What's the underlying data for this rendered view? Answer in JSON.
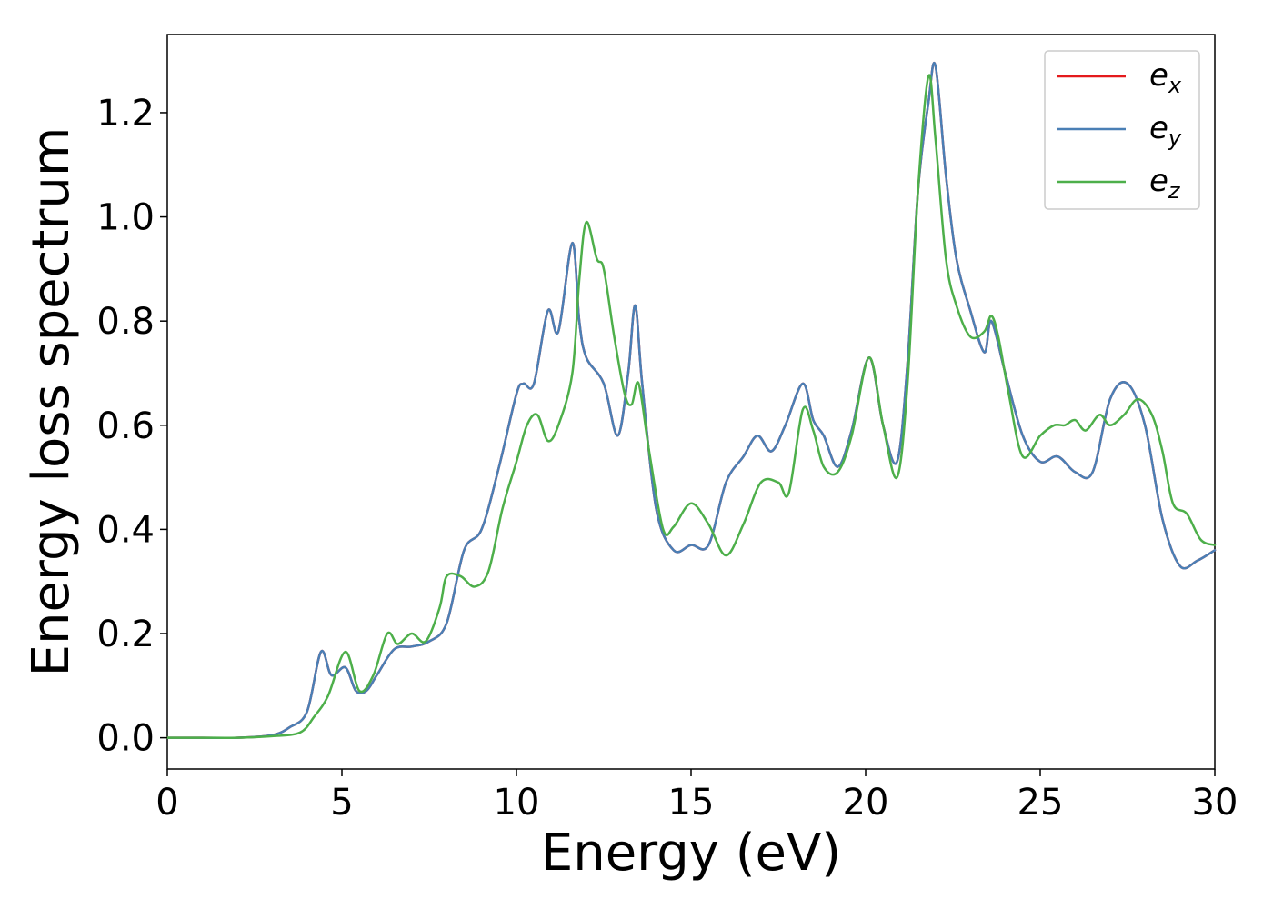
{
  "chart_data": {
    "type": "line",
    "title": "",
    "xlabel": "Energy (eV)",
    "ylabel": "Energy loss spectrum",
    "xlim": [
      0,
      30
    ],
    "ylim": [
      -0.06,
      1.35
    ],
    "xticks": [
      0,
      5,
      10,
      15,
      20,
      25,
      30
    ],
    "xtick_labels": [
      "0",
      "5",
      "10",
      "15",
      "20",
      "25",
      "30"
    ],
    "yticks": [
      0.0,
      0.2,
      0.4,
      0.6,
      0.8,
      1.0,
      1.2
    ],
    "ytick_labels": [
      "0.0",
      "0.2",
      "0.4",
      "0.6",
      "0.8",
      "1.0",
      "1.2"
    ],
    "grid": false,
    "legend_position": "top-right",
    "series": [
      {
        "name": "e_x",
        "legend_main": "e",
        "legend_sub": "x",
        "color": "#e41a1c",
        "x": [
          0,
          1,
          2,
          3,
          3.5,
          4,
          4.4,
          4.7,
          5.1,
          5.4,
          5.7,
          6.0,
          6.5,
          7.0,
          7.5,
          8.0,
          8.5,
          9.0,
          9.5,
          10.0,
          10.2,
          10.5,
          10.9,
          11.2,
          11.6,
          11.8,
          12.0,
          12.5,
          12.9,
          13.2,
          13.4,
          13.6,
          14.0,
          14.5,
          15.0,
          15.5,
          16.0,
          16.5,
          16.9,
          17.3,
          17.7,
          18.2,
          18.5,
          18.8,
          19.2,
          19.6,
          20.1,
          20.5,
          20.9,
          21.2,
          21.5,
          21.8,
          22.0,
          22.3,
          22.6,
          23.0,
          23.4,
          23.6,
          24.0,
          24.5,
          25.0,
          25.5,
          26.0,
          26.5,
          27.0,
          27.5,
          28.0,
          28.5,
          29.0,
          29.5,
          30.0
        ],
        "y": [
          0.0,
          0.0,
          0.0,
          0.005,
          0.02,
          0.05,
          0.165,
          0.12,
          0.135,
          0.09,
          0.09,
          0.12,
          0.17,
          0.175,
          0.185,
          0.22,
          0.36,
          0.4,
          0.52,
          0.66,
          0.68,
          0.68,
          0.82,
          0.78,
          0.95,
          0.8,
          0.73,
          0.68,
          0.58,
          0.7,
          0.83,
          0.68,
          0.44,
          0.36,
          0.37,
          0.37,
          0.49,
          0.54,
          0.58,
          0.55,
          0.6,
          0.68,
          0.61,
          0.58,
          0.52,
          0.59,
          0.73,
          0.6,
          0.53,
          0.72,
          1.05,
          1.22,
          1.29,
          1.08,
          0.92,
          0.82,
          0.74,
          0.8,
          0.7,
          0.58,
          0.53,
          0.54,
          0.51,
          0.51,
          0.65,
          0.68,
          0.6,
          0.42,
          0.33,
          0.34,
          0.36
        ]
      },
      {
        "name": "e_y",
        "legend_main": "e",
        "legend_sub": "y",
        "color": "#4a7fb5",
        "x": [
          0,
          1,
          2,
          3,
          3.5,
          4,
          4.4,
          4.7,
          5.1,
          5.4,
          5.7,
          6.0,
          6.5,
          7.0,
          7.5,
          8.0,
          8.5,
          9.0,
          9.5,
          10.0,
          10.2,
          10.5,
          10.9,
          11.2,
          11.6,
          11.8,
          12.0,
          12.5,
          12.9,
          13.2,
          13.4,
          13.6,
          14.0,
          14.5,
          15.0,
          15.5,
          16.0,
          16.5,
          16.9,
          17.3,
          17.7,
          18.2,
          18.5,
          18.8,
          19.2,
          19.6,
          20.1,
          20.5,
          20.9,
          21.2,
          21.5,
          21.8,
          22.0,
          22.3,
          22.6,
          23.0,
          23.4,
          23.6,
          24.0,
          24.5,
          25.0,
          25.5,
          26.0,
          26.5,
          27.0,
          27.5,
          28.0,
          28.5,
          29.0,
          29.5,
          30.0
        ],
        "y": [
          0.0,
          0.0,
          0.0,
          0.005,
          0.02,
          0.05,
          0.165,
          0.12,
          0.135,
          0.09,
          0.09,
          0.12,
          0.17,
          0.175,
          0.185,
          0.22,
          0.36,
          0.4,
          0.52,
          0.66,
          0.68,
          0.68,
          0.82,
          0.78,
          0.95,
          0.8,
          0.73,
          0.68,
          0.58,
          0.7,
          0.83,
          0.68,
          0.44,
          0.36,
          0.37,
          0.37,
          0.49,
          0.54,
          0.58,
          0.55,
          0.6,
          0.68,
          0.61,
          0.58,
          0.52,
          0.59,
          0.73,
          0.6,
          0.53,
          0.72,
          1.05,
          1.22,
          1.29,
          1.08,
          0.92,
          0.82,
          0.74,
          0.8,
          0.7,
          0.58,
          0.53,
          0.54,
          0.51,
          0.51,
          0.65,
          0.68,
          0.6,
          0.42,
          0.33,
          0.34,
          0.36
        ]
      },
      {
        "name": "e_z",
        "legend_main": "e",
        "legend_sub": "z",
        "color": "#4daf4a",
        "x": [
          0,
          1,
          2,
          3,
          3.8,
          4.2,
          4.6,
          5.1,
          5.5,
          5.9,
          6.3,
          6.6,
          7.0,
          7.4,
          7.8,
          8.0,
          8.4,
          8.8,
          9.2,
          9.6,
          10.0,
          10.3,
          10.6,
          10.9,
          11.2,
          11.6,
          11.8,
          12.0,
          12.3,
          12.5,
          12.8,
          13.1,
          13.3,
          13.5,
          13.8,
          14.2,
          14.5,
          15.0,
          15.5,
          16.0,
          16.5,
          17.0,
          17.5,
          17.8,
          18.2,
          18.5,
          18.8,
          19.2,
          19.6,
          20.1,
          20.5,
          20.9,
          21.2,
          21.5,
          21.8,
          22.0,
          22.3,
          22.6,
          23.0,
          23.4,
          23.6,
          23.8,
          24.1,
          24.5,
          25.0,
          25.4,
          25.7,
          26.0,
          26.3,
          26.7,
          27.0,
          27.4,
          27.8,
          28.2,
          28.5,
          28.8,
          29.2,
          29.6,
          30.0
        ],
        "y": [
          0.0,
          0.0,
          0.0,
          0.003,
          0.01,
          0.04,
          0.08,
          0.165,
          0.09,
          0.12,
          0.2,
          0.18,
          0.2,
          0.185,
          0.25,
          0.31,
          0.31,
          0.29,
          0.32,
          0.44,
          0.53,
          0.6,
          0.62,
          0.57,
          0.6,
          0.7,
          0.88,
          0.99,
          0.92,
          0.9,
          0.77,
          0.66,
          0.64,
          0.68,
          0.55,
          0.4,
          0.405,
          0.45,
          0.41,
          0.35,
          0.41,
          0.49,
          0.49,
          0.47,
          0.63,
          0.59,
          0.52,
          0.51,
          0.58,
          0.73,
          0.6,
          0.5,
          0.68,
          1.05,
          1.27,
          1.15,
          0.92,
          0.83,
          0.77,
          0.78,
          0.81,
          0.77,
          0.66,
          0.54,
          0.58,
          0.6,
          0.6,
          0.61,
          0.59,
          0.62,
          0.6,
          0.62,
          0.65,
          0.62,
          0.55,
          0.45,
          0.43,
          0.38,
          0.37
        ]
      }
    ]
  }
}
